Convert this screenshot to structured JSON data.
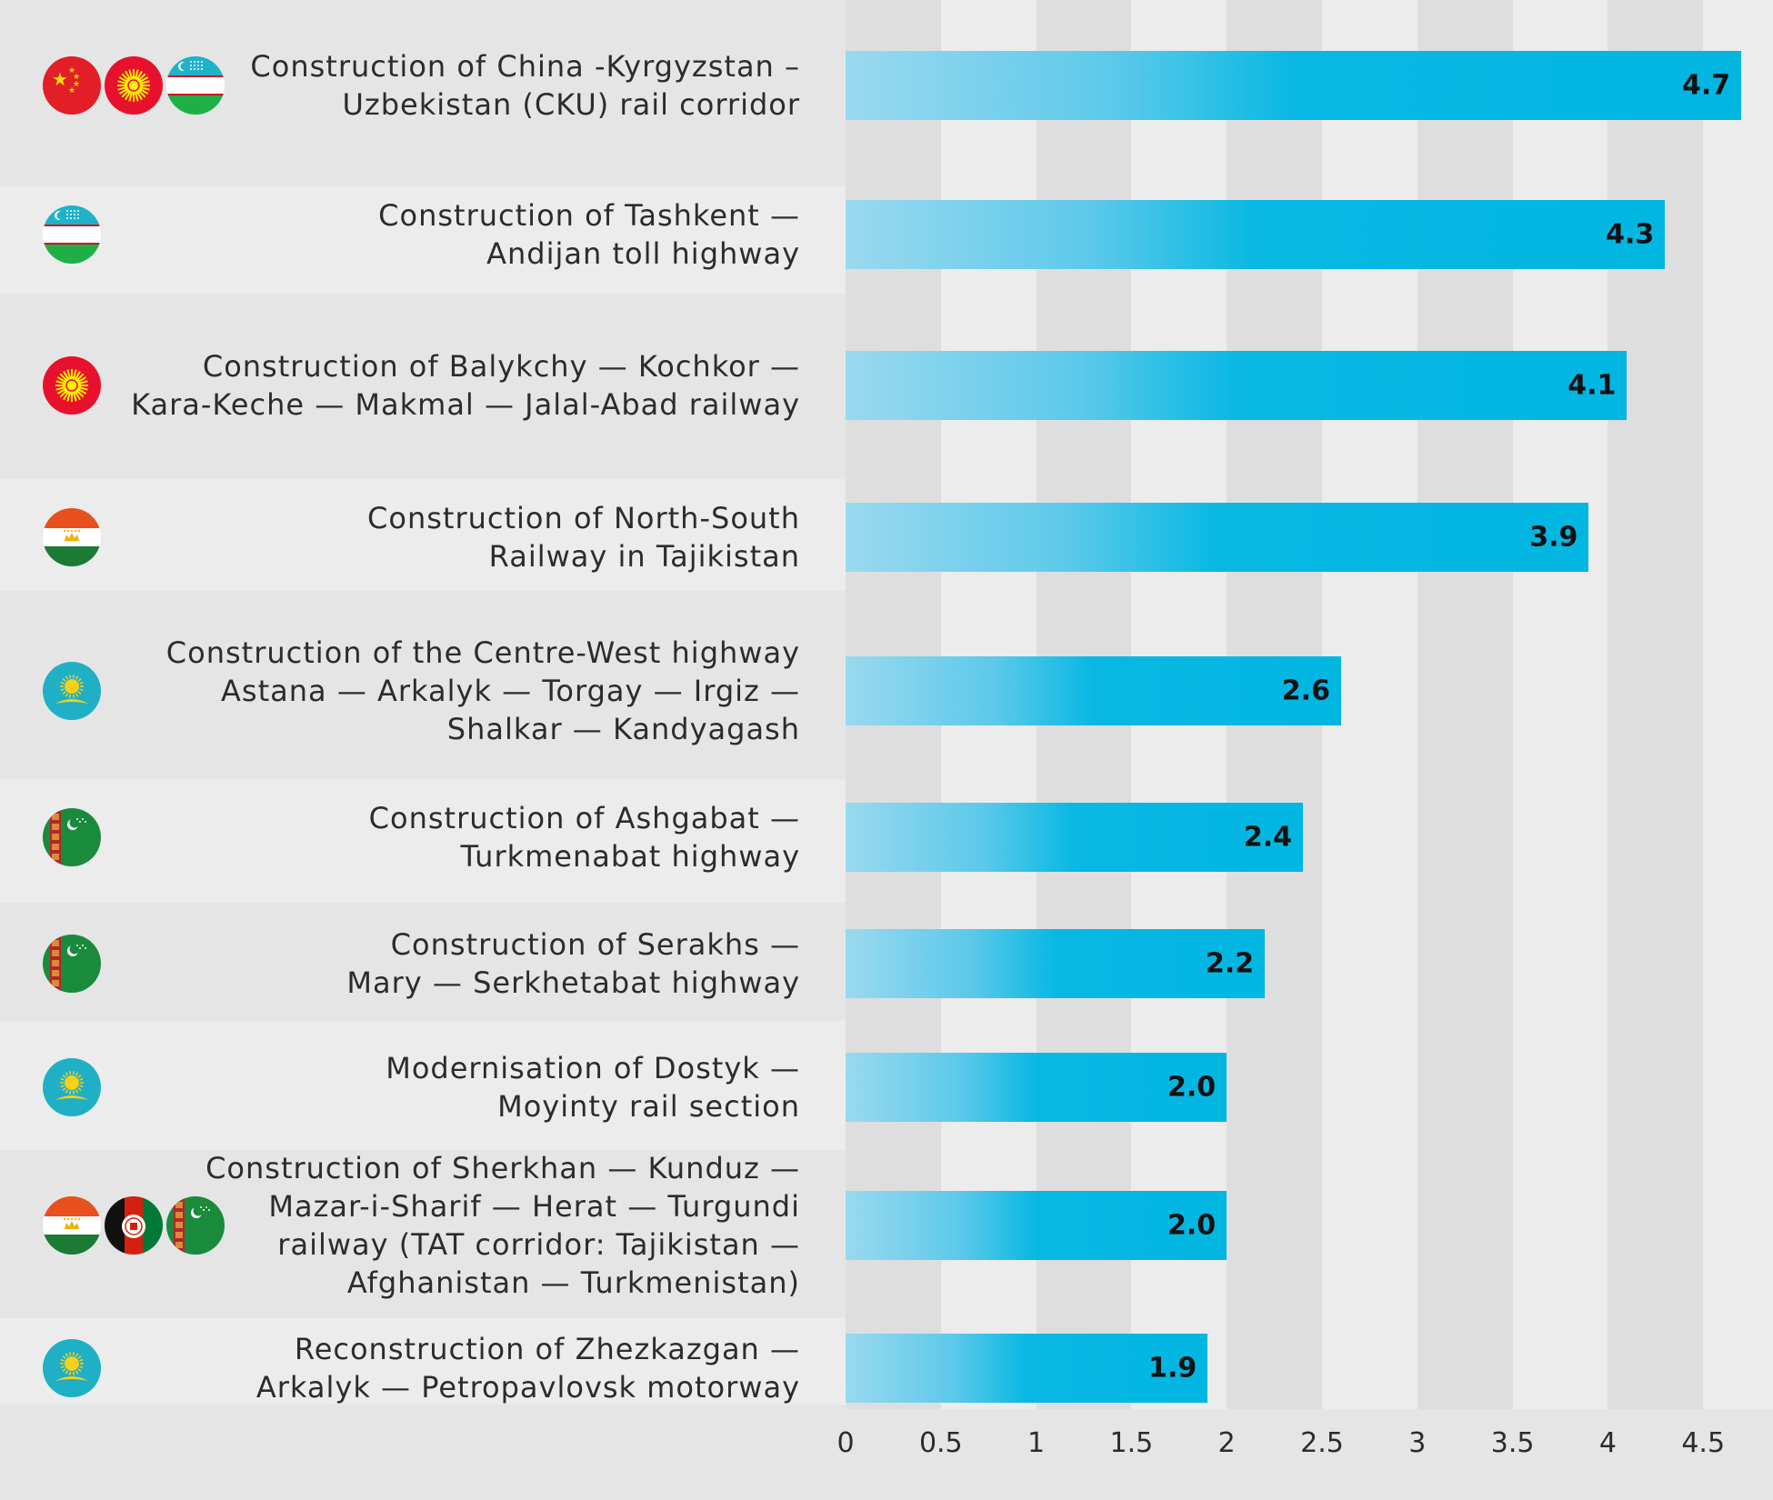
{
  "chart_data": {
    "type": "bar",
    "orientation": "horizontal",
    "grid": true,
    "xlim": [
      0,
      4.7
    ],
    "ticks": [
      {
        "value": 0,
        "label": "0"
      },
      {
        "value": 0.5,
        "label": "0.5"
      },
      {
        "value": 1,
        "label": "1"
      },
      {
        "value": 1.5,
        "label": "1.5"
      },
      {
        "value": 2,
        "label": "2"
      },
      {
        "value": 2.5,
        "label": "2.5"
      },
      {
        "value": 3,
        "label": "3"
      },
      {
        "value": 3.5,
        "label": "3.5"
      },
      {
        "value": 4,
        "label": "4"
      },
      {
        "value": 4.5,
        "label": "4.5"
      }
    ],
    "categories": [
      {
        "lines": [
          "Construction of China -Kyrgyzstan –",
          "Uzbekistan (CKU) rail corridor"
        ],
        "value": 4.7,
        "value_label": "4.7",
        "flags": [
          "china",
          "kyrgyzstan",
          "uzbekistan"
        ]
      },
      {
        "lines": [
          "Construction of Tashkent —",
          "Andijan toll highway"
        ],
        "value": 4.3,
        "value_label": "4.3",
        "flags": [
          "uzbekistan"
        ]
      },
      {
        "lines": [
          "Construction of Balykchy — Kochkor —",
          "Kara-Keche — Makmal — Jalal-Abad railway"
        ],
        "value": 4.1,
        "value_label": "4.1",
        "flags": [
          "kyrgyzstan"
        ]
      },
      {
        "lines": [
          "Construction of North-South",
          "Railway in Tajikistan"
        ],
        "value": 3.9,
        "value_label": "3.9",
        "flags": [
          "tajikistan"
        ]
      },
      {
        "lines": [
          "Construction of the Centre-West highway",
          "Astana — Arkalyk — Torgay — Irgiz —",
          "Shalkar — Kandyagash"
        ],
        "value": 2.6,
        "value_label": "2.6",
        "flags": [
          "kazakhstan"
        ]
      },
      {
        "lines": [
          "Construction of Ashgabat —",
          "Turkmenabat highway"
        ],
        "value": 2.4,
        "value_label": "2.4",
        "flags": [
          "turkmenistan"
        ]
      },
      {
        "lines": [
          "Construction of Serakhs —",
          "Mary — Serkhetabat highway"
        ],
        "value": 2.2,
        "value_label": "2.2",
        "flags": [
          "turkmenistan"
        ]
      },
      {
        "lines": [
          "Modernisation of Dostyk —",
          "Moyinty rail section"
        ],
        "value": 2.0,
        "value_label": "2.0",
        "flags": [
          "kazakhstan"
        ]
      },
      {
        "lines": [
          "Construction of Sherkhan — Kunduz —",
          "Mazar-i-Sharif — Herat — Turgundi",
          "railway (TAT corridor: Tajikistan —",
          "Afghanistan — Turkmenistan)"
        ],
        "value": 2.0,
        "value_label": "2.0",
        "flags": [
          "tajikistan",
          "afghanistan",
          "turkmenistan"
        ]
      },
      {
        "lines": [
          "Reconstruction of Zhezkazgan —",
          "Arkalyk — Petropavlovsk motorway"
        ],
        "value": 1.9,
        "value_label": "1.9",
        "flags": [
          "kazakhstan"
        ]
      }
    ],
    "colors": {
      "bar_light": "#9ad9ef",
      "bar_dark": "#02b6e2",
      "background": "#e5e5e6",
      "stripe_light": "#ececed",
      "stripe_dark": "#dededf"
    }
  }
}
